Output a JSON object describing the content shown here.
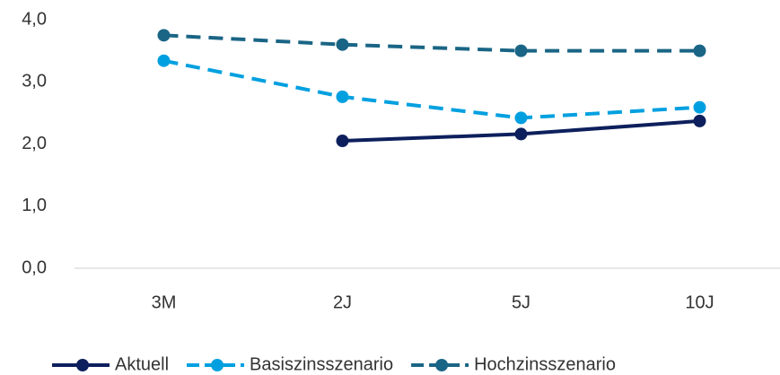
{
  "chart_data": {
    "type": "line",
    "categories": [
      "3M",
      "2J",
      "5J",
      "10J"
    ],
    "series": [
      {
        "name": "Aktuell",
        "color": "#0d1f5c",
        "dash": "solid",
        "values": [
          null,
          2.05,
          2.16,
          2.37
        ]
      },
      {
        "name": "Basiszinsszenario",
        "color": "#00a0e0",
        "dash": "dashed",
        "values": [
          3.34,
          2.76,
          2.42,
          2.59
        ]
      },
      {
        "name": "Hochzinsszenario",
        "color": "#1a6585",
        "dash": "dashed",
        "values": [
          3.75,
          3.6,
          3.5,
          3.5
        ]
      }
    ],
    "ylim": [
      0,
      4
    ],
    "yticks": [
      {
        "value": 0,
        "label": "0,0"
      },
      {
        "value": 1,
        "label": "1,0"
      },
      {
        "value": 2,
        "label": "2,0"
      },
      {
        "value": 3,
        "label": "3,0"
      },
      {
        "value": 4,
        "label": "4,0"
      }
    ],
    "grid": false,
    "legend": "bottom"
  }
}
